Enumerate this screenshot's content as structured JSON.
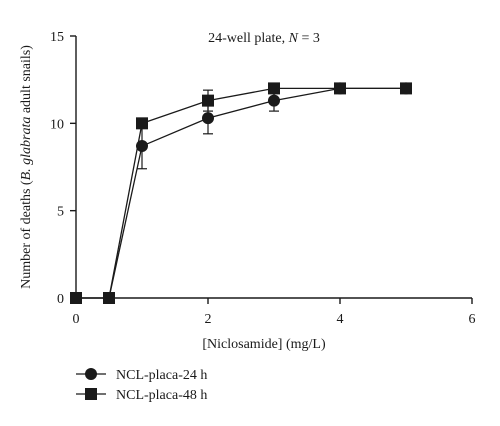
{
  "chart_data": {
    "type": "line",
    "title_main": "24-well plate, ",
    "title_italic": "N",
    "title_tail": " = 3",
    "xlabel": "[Niclosamide] (mg/L)",
    "ylabel_pre": "Number of deaths (",
    "ylabel_italic": "B. glabrata",
    "ylabel_post": " adult snails)",
    "xlim": [
      0,
      6
    ],
    "ylim": [
      0,
      15
    ],
    "xticks": [
      0,
      2,
      4,
      6
    ],
    "yticks": [
      0,
      5,
      10,
      15
    ],
    "grid": false,
    "legend_position": "bottom-left",
    "series": [
      {
        "name": "NCL-placa-24 h",
        "marker": "circle",
        "color": "#1a1a1a",
        "x": [
          0,
          0.5,
          1,
          2,
          3,
          4,
          5
        ],
        "y": [
          0,
          0,
          8.7,
          10.3,
          11.3,
          12,
          12
        ],
        "err": [
          0,
          0,
          1.3,
          0.9,
          0.6,
          0,
          0
        ]
      },
      {
        "name": "NCL-placa-48 h",
        "marker": "square",
        "color": "#1a1a1a",
        "x": [
          0,
          0.5,
          1,
          2,
          3,
          4,
          5
        ],
        "y": [
          0,
          0,
          10,
          11.3,
          12,
          12,
          12
        ],
        "err": [
          0,
          0,
          0,
          0.6,
          0,
          0,
          0
        ]
      }
    ]
  }
}
